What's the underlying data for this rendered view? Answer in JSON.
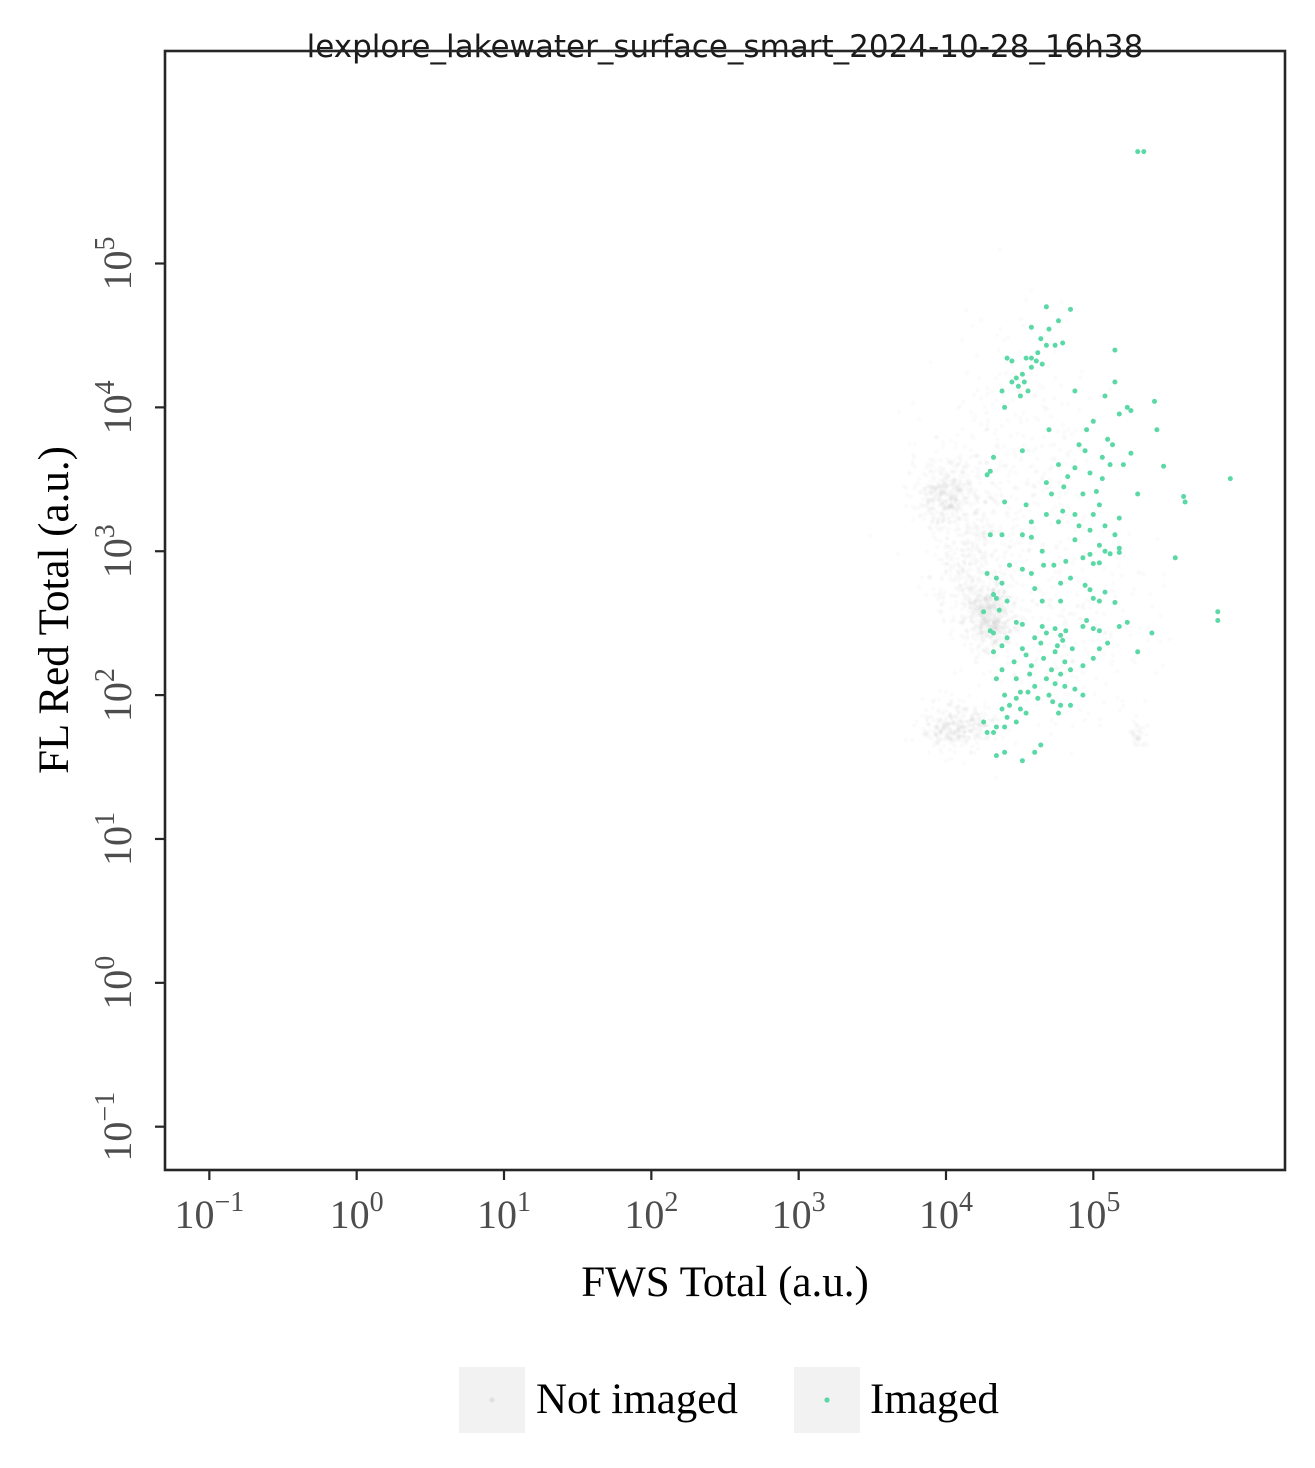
{
  "chart_data": {
    "type": "scatter",
    "title": "lexplore_lakewater_surface_smart_2024-10-28_16h38",
    "xlabel": "FWS Total (a.u.)",
    "ylabel": "FL Red Total (a.u.)",
    "x_scale": "log",
    "y_scale": "log",
    "xlim": [
      0.05,
      2000000
    ],
    "ylim": [
      0.05,
      3000000
    ],
    "x_ticks": [
      {
        "value": 0.1,
        "base": "10",
        "exp": "−1"
      },
      {
        "value": 1,
        "base": "10",
        "exp": "0"
      },
      {
        "value": 10,
        "base": "10",
        "exp": "1"
      },
      {
        "value": 100,
        "base": "10",
        "exp": "2"
      },
      {
        "value": 1000,
        "base": "10",
        "exp": "3"
      },
      {
        "value": 10000,
        "base": "10",
        "exp": "4"
      },
      {
        "value": 100000,
        "base": "10",
        "exp": "5"
      }
    ],
    "y_ticks": [
      {
        "value": 0.1,
        "base": "10",
        "exp": "−1"
      },
      {
        "value": 1,
        "base": "10",
        "exp": "0"
      },
      {
        "value": 10,
        "base": "10",
        "exp": "1"
      },
      {
        "value": 100,
        "base": "10",
        "exp": "2"
      },
      {
        "value": 1000,
        "base": "10",
        "exp": "3"
      },
      {
        "value": 10000,
        "base": "10",
        "exp": "4"
      },
      {
        "value": 100000,
        "base": "10",
        "exp": "5"
      }
    ],
    "grid": false,
    "legend_position": "bottom-center",
    "colors": {
      "not_imaged": "#c8c8c8",
      "imaged": "#5ad8a6",
      "axis": "#262626",
      "tick_label": "#4d4d4d",
      "legend_key_bg": "#f2f2f2"
    },
    "series": [
      {
        "name": "Not imaged",
        "density_clusters": [
          {
            "x": 10000,
            "y": 2500,
            "sx": 0.12,
            "sy": 0.12,
            "n": 400
          },
          {
            "x": 20000,
            "y": 350,
            "sx": 0.08,
            "sy": 0.12,
            "n": 500
          },
          {
            "x": 12000,
            "y": 60,
            "sx": 0.12,
            "sy": 0.08,
            "n": 350
          },
          {
            "x": 15000,
            "y": 800,
            "sx": 0.14,
            "sy": 0.25,
            "n": 400
          },
          {
            "x": 30000,
            "y": 4000,
            "sx": 0.25,
            "sy": 0.45,
            "n": 350
          },
          {
            "x": 60000,
            "y": 300,
            "sx": 0.3,
            "sy": 0.4,
            "n": 250
          },
          {
            "x": 200000,
            "y": 50,
            "sx": 0.03,
            "sy": 0.06,
            "n": 40
          }
        ]
      },
      {
        "name": "Imaged",
        "points": [
          [
            200000,
            600000
          ],
          [
            220000,
            600000
          ],
          [
            48000,
            50000
          ],
          [
            70000,
            48000
          ],
          [
            58000,
            40000
          ],
          [
            38000,
            36000
          ],
          [
            50000,
            35000
          ],
          [
            44000,
            30000
          ],
          [
            55000,
            27000
          ],
          [
            62000,
            28000
          ],
          [
            48000,
            27000
          ],
          [
            42000,
            24000
          ],
          [
            38000,
            22000
          ],
          [
            41000,
            21000
          ],
          [
            45000,
            20000
          ],
          [
            35000,
            22000
          ],
          [
            26000,
            22000
          ],
          [
            28000,
            21000
          ],
          [
            38000,
            19000
          ],
          [
            33000,
            17000
          ],
          [
            30000,
            16000
          ],
          [
            34000,
            15000
          ],
          [
            31000,
            14000
          ],
          [
            28000,
            15000
          ],
          [
            36000,
            13000
          ],
          [
            32000,
            12000
          ],
          [
            24000,
            13000
          ],
          [
            140000,
            25000
          ],
          [
            140000,
            15000
          ],
          [
            75000,
            13000
          ],
          [
            120000,
            12000
          ],
          [
            170000,
            10000
          ],
          [
            180000,
            9500
          ],
          [
            260000,
            11000
          ],
          [
            150000,
            9000
          ],
          [
            100000,
            8000
          ],
          [
            25000,
            10000
          ],
          [
            50000,
            7000
          ],
          [
            90000,
            7000
          ],
          [
            270000,
            7000
          ],
          [
            125000,
            6000
          ],
          [
            135000,
            5500
          ],
          [
            80000,
            5500
          ],
          [
            88000,
            5000
          ],
          [
            115000,
            4500
          ],
          [
            130000,
            4000
          ],
          [
            160000,
            4000
          ],
          [
            180000,
            4800
          ],
          [
            33000,
            5000
          ],
          [
            21000,
            4500
          ],
          [
            58000,
            4000
          ],
          [
            75000,
            3800
          ],
          [
            95000,
            3500
          ],
          [
            67000,
            3300
          ],
          [
            115000,
            3200
          ],
          [
            20000,
            3600
          ],
          [
            19000,
            3400
          ],
          [
            300000,
            3900
          ],
          [
            850000,
            3200
          ],
          [
            48000,
            3000
          ],
          [
            63000,
            2800
          ],
          [
            52000,
            2500
          ],
          [
            85000,
            2500
          ],
          [
            105000,
            2600
          ],
          [
            200000,
            2500
          ],
          [
            410000,
            2400
          ],
          [
            420000,
            2200
          ],
          [
            25000,
            2200
          ],
          [
            35000,
            2100
          ],
          [
            110000,
            2100
          ],
          [
            48000,
            1800
          ],
          [
            62000,
            1900
          ],
          [
            75000,
            1800
          ],
          [
            100000,
            1800
          ],
          [
            150000,
            1700
          ],
          [
            38000,
            1600
          ],
          [
            58000,
            1600
          ],
          [
            120000,
            1500
          ],
          [
            80000,
            1500
          ],
          [
            95000,
            1400
          ],
          [
            140000,
            1300
          ],
          [
            20000,
            1300
          ],
          [
            24000,
            1300
          ],
          [
            33000,
            1300
          ],
          [
            38000,
            1250
          ],
          [
            75000,
            1200
          ],
          [
            110000,
            1100
          ],
          [
            150000,
            1050
          ],
          [
            45000,
            1000
          ],
          [
            120000,
            1000
          ],
          [
            95000,
            950
          ],
          [
            130000,
            960
          ],
          [
            150000,
            980
          ],
          [
            360000,
            900
          ],
          [
            85000,
            900
          ],
          [
            65000,
            850
          ],
          [
            46000,
            800
          ],
          [
            54000,
            800
          ],
          [
            100000,
            820
          ],
          [
            110000,
            830
          ],
          [
            27000,
            800
          ],
          [
            33000,
            750
          ],
          [
            38000,
            700
          ],
          [
            19000,
            700
          ],
          [
            22000,
            650
          ],
          [
            70000,
            650
          ],
          [
            24000,
            600
          ],
          [
            40000,
            550
          ],
          [
            60000,
            600
          ],
          [
            88000,
            580
          ],
          [
            95000,
            540
          ],
          [
            120000,
            520
          ],
          [
            21000,
            500
          ],
          [
            22000,
            470
          ],
          [
            26000,
            450
          ],
          [
            45000,
            450
          ],
          [
            60000,
            450
          ],
          [
            100000,
            470
          ],
          [
            110000,
            450
          ],
          [
            140000,
            440
          ],
          [
            18000,
            380
          ],
          [
            23000,
            390
          ],
          [
            170000,
            320
          ],
          [
            700000,
            380
          ],
          [
            700000,
            330
          ],
          [
            30000,
            320
          ],
          [
            33000,
            310
          ],
          [
            45000,
            300
          ],
          [
            55000,
            290
          ],
          [
            65000,
            280
          ],
          [
            85000,
            300
          ],
          [
            90000,
            330
          ],
          [
            100000,
            290
          ],
          [
            110000,
            280
          ],
          [
            150000,
            300
          ],
          [
            20000,
            280
          ],
          [
            21000,
            270
          ],
          [
            48000,
            270
          ],
          [
            60000,
            260
          ],
          [
            250000,
            270
          ],
          [
            26000,
            250
          ],
          [
            40000,
            250
          ],
          [
            62000,
            240
          ],
          [
            24000,
            220
          ],
          [
            33000,
            210
          ],
          [
            55000,
            200
          ],
          [
            44000,
            230
          ],
          [
            57000,
            220
          ],
          [
            72000,
            210
          ],
          [
            110000,
            210
          ],
          [
            125000,
            230
          ],
          [
            200000,
            200
          ],
          [
            21000,
            200
          ],
          [
            35000,
            190
          ],
          [
            46000,
            180
          ],
          [
            64000,
            170
          ],
          [
            85000,
            160
          ],
          [
            100000,
            180
          ],
          [
            29000,
            170
          ],
          [
            38000,
            160
          ],
          [
            52000,
            150
          ],
          [
            70000,
            150
          ],
          [
            24000,
            150
          ],
          [
            37000,
            140
          ],
          [
            48000,
            130
          ],
          [
            60000,
            140
          ],
          [
            22000,
            130
          ],
          [
            30000,
            130
          ],
          [
            55000,
            120
          ],
          [
            40000,
            115
          ],
          [
            64000,
            115
          ],
          [
            75000,
            110
          ],
          [
            25000,
            100
          ],
          [
            32000,
            105
          ],
          [
            36000,
            105
          ],
          [
            50000,
            100
          ],
          [
            85000,
            100
          ],
          [
            30000,
            95
          ],
          [
            42000,
            95
          ],
          [
            53000,
            90
          ],
          [
            27000,
            85
          ],
          [
            32000,
            80
          ],
          [
            24000,
            80
          ],
          [
            60000,
            85
          ],
          [
            35000,
            75
          ],
          [
            58000,
            75
          ],
          [
            70000,
            85
          ],
          [
            26000,
            70
          ],
          [
            30000,
            65
          ],
          [
            18000,
            65
          ],
          [
            22000,
            60
          ],
          [
            25000,
            60
          ],
          [
            19000,
            55
          ],
          [
            21000,
            55
          ],
          [
            40000,
            40
          ],
          [
            25000,
            40
          ],
          [
            33000,
            35
          ],
          [
            22000,
            38
          ],
          [
            44000,
            45
          ]
        ]
      }
    ]
  }
}
